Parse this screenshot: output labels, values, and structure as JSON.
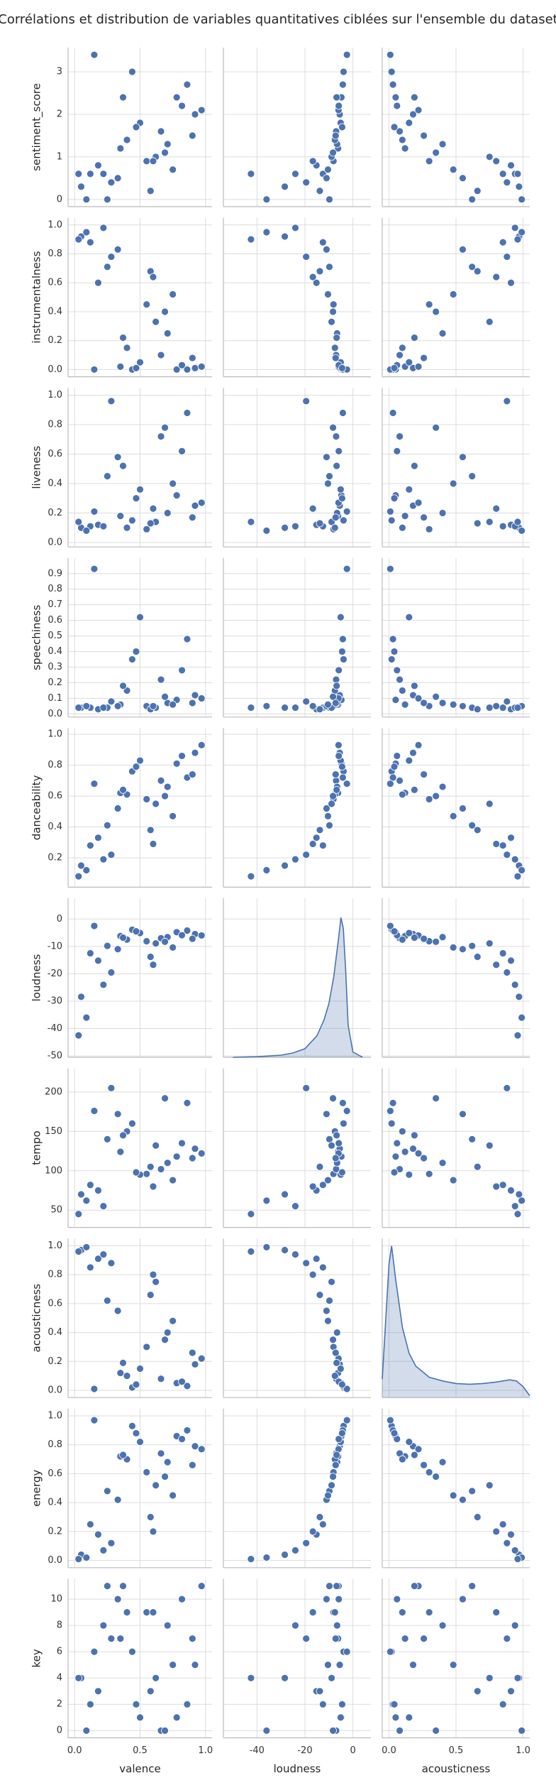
{
  "chart_data": {
    "type": "pairplot",
    "title": "Corrélations et distribution de variables quantitatives ciblées sur l'ensemble du dataset",
    "color": "#4c72b0",
    "grid": true,
    "columns": [
      {
        "label": "valence",
        "xlim": [
          -0.05,
          1.05
        ],
        "xticks": [
          {
            "value": 0,
            "label": "0.0"
          },
          0.5,
          {
            "value": 1,
            "label": "1.0"
          }
        ],
        "values": [
          0.12,
          0.35,
          0.78,
          0.55,
          0.92,
          0.05,
          0.25,
          0.66,
          0.44,
          0.18,
          0.71,
          0.33,
          0.86,
          0.09,
          0.5,
          0.62,
          0.97,
          0.28,
          0.4,
          0.75,
          0.15,
          0.58,
          0.82,
          0.22,
          0.47,
          0.69,
          0.03,
          0.9,
          0.37,
          0.6
        ]
      },
      {
        "label": "loudness",
        "xlim": [
          -54,
          7.5
        ],
        "xticks": [
          -40,
          -20,
          0
        ],
        "values": [
          -12.5,
          -6.2,
          -4.8,
          -8.1,
          -5.5,
          -28.4,
          -9.8,
          -7.0,
          -3.9,
          -15.2,
          -6.6,
          -11.0,
          -4.2,
          -36.0,
          -5.1,
          -8.9,
          -6.0,
          -19.5,
          -7.5,
          -10.4,
          -2.5,
          -13.8,
          -5.9,
          -24.0,
          -4.5,
          -8.3,
          -42.5,
          -7.2,
          -6.8,
          -16.7
        ]
      },
      {
        "label": "acousticness",
        "xlim": [
          -0.05,
          1.05
        ],
        "xticks": [
          {
            "value": 0,
            "label": "0.0"
          },
          0.5,
          {
            "value": 1,
            "label": "1.0"
          }
        ],
        "values": [
          0.85,
          0.12,
          0.05,
          0.3,
          0.18,
          0.97,
          0.62,
          0.08,
          0.02,
          0.91,
          0.4,
          0.55,
          0.03,
          0.99,
          0.15,
          0.75,
          0.22,
          0.88,
          0.1,
          0.48,
          0.01,
          0.66,
          0.06,
          0.94,
          0.04,
          0.35,
          0.96,
          0.26,
          0.19,
          0.8
        ]
      }
    ],
    "rows": [
      {
        "label": "sentiment_score",
        "ylim": [
          -0.17,
          3.57
        ],
        "yticks": [
          0,
          1,
          2,
          3
        ],
        "values": [
          0.6,
          1.2,
          2.4,
          0.9,
          2.0,
          0.3,
          0.0,
          1.6,
          3.0,
          0.8,
          1.3,
          0.5,
          2.7,
          0.0,
          1.8,
          1.0,
          2.1,
          0.4,
          1.4,
          0.7,
          3.4,
          0.2,
          2.2,
          0.6,
          1.7,
          1.1,
          0.6,
          1.5,
          2.4,
          0.9
        ]
      },
      {
        "label": "instrumentalness",
        "ylim": [
          -0.05,
          1.05
        ],
        "yticks": [
          {
            "value": 0,
            "label": "0.0"
          },
          0.2,
          0.4,
          0.6,
          0.8,
          {
            "value": 1,
            "label": "1.0"
          }
        ],
        "values": [
          0.88,
          0.02,
          0.0,
          0.45,
          0.01,
          0.92,
          0.71,
          0.1,
          0.0,
          0.6,
          0.25,
          0.83,
          0.0,
          0.95,
          0.05,
          0.33,
          0.02,
          0.78,
          0.15,
          0.52,
          0.0,
          0.68,
          0.03,
          0.98,
          0.01,
          0.4,
          0.9,
          0.08,
          0.22,
          0.64
        ]
      },
      {
        "label": "liveness",
        "ylim": [
          -0.03,
          1.05
        ],
        "yticks": [
          {
            "value": 0,
            "label": "0.0"
          },
          0.2,
          0.4,
          0.6,
          0.8,
          {
            "value": 1,
            "label": "1.0"
          }
        ],
        "values": [
          0.11,
          0.18,
          0.32,
          0.09,
          0.25,
          0.1,
          0.45,
          0.72,
          0.15,
          0.12,
          0.2,
          0.58,
          0.88,
          0.08,
          0.36,
          0.14,
          0.27,
          0.96,
          0.1,
          0.4,
          0.21,
          0.13,
          0.62,
          0.11,
          0.3,
          0.78,
          0.14,
          0.17,
          0.52,
          0.23
        ]
      },
      {
        "label": "speechiness",
        "ylim": [
          -0.02,
          1.0
        ],
        "yticks": [
          {
            "value": 0,
            "label": "0.0"
          },
          0.1,
          0.2,
          0.3,
          0.4,
          0.5,
          0.6,
          0.7,
          0.8,
          0.9
        ],
        "values": [
          0.04,
          0.06,
          0.09,
          0.05,
          0.12,
          0.04,
          0.04,
          0.22,
          0.35,
          0.03,
          0.07,
          0.05,
          0.48,
          0.05,
          0.62,
          0.04,
          0.1,
          0.08,
          0.15,
          0.06,
          0.93,
          0.03,
          0.28,
          0.04,
          0.4,
          0.11,
          0.04,
          0.07,
          0.18,
          0.05
        ]
      },
      {
        "label": "danceability",
        "ylim": [
          0.01,
          1.04
        ],
        "yticks": [
          0.2,
          0.4,
          0.6,
          0.8,
          {
            "value": 1,
            "label": "1.0"
          }
        ],
        "values": [
          0.28,
          0.62,
          0.81,
          0.58,
          0.88,
          0.15,
          0.41,
          0.7,
          0.76,
          0.33,
          0.66,
          0.52,
          0.72,
          0.12,
          0.83,
          0.55,
          0.93,
          0.22,
          0.61,
          0.47,
          0.68,
          0.38,
          0.86,
          0.19,
          0.79,
          0.6,
          0.08,
          0.74,
          0.64,
          0.29
        ]
      },
      {
        "label": "loudness",
        "ylim": [
          -50.5,
          7.6
        ],
        "yticks": [
          -50,
          -40,
          -30,
          -20,
          -10,
          0
        ],
        "values": [
          -12.5,
          -6.2,
          -4.8,
          -8.1,
          -5.5,
          -28.4,
          -9.8,
          -7.0,
          -3.9,
          -15.2,
          -6.6,
          -11.0,
          -4.2,
          -36.0,
          -5.1,
          -8.9,
          -6.0,
          -19.5,
          -7.5,
          -10.4,
          -2.5,
          -13.8,
          -5.9,
          -24.0,
          -4.5,
          -8.3,
          -42.5,
          -7.2,
          -6.8,
          -16.7
        ],
        "kde": {
          "x": [
            -50,
            -40,
            -30,
            -25,
            -20,
            -15,
            -12,
            -10,
            -8,
            -6,
            -5,
            -4,
            -3,
            -2,
            0,
            4
          ],
          "density": [
            0,
            0.0005,
            0.002,
            0.004,
            0.008,
            0.02,
            0.035,
            0.05,
            0.075,
            0.11,
            0.13,
            0.12,
            0.08,
            0.03,
            0.005,
            0
          ],
          "densitylim": [
            0,
            0.148
          ]
        }
      },
      {
        "label": "tempo",
        "ylim": [
          28,
          230
        ],
        "yticks": [
          50,
          100,
          150,
          200
        ],
        "values": [
          82,
          124,
          118,
          96,
          128,
          70,
          140,
          102,
          160,
          75,
          110,
          172,
          186,
          62,
          95,
          132,
          122,
          205,
          150,
          88,
          176,
          105,
          135,
          55,
          98,
          192,
          45,
          116,
          145,
          80
        ]
      },
      {
        "label": "acousticness",
        "ylim": [
          -0.05,
          1.05
        ],
        "yticks": [
          {
            "value": 0,
            "label": "0.0"
          },
          0.2,
          0.4,
          0.6,
          0.8,
          {
            "value": 1,
            "label": "1.0"
          }
        ],
        "values": [
          0.85,
          0.12,
          0.05,
          0.3,
          0.18,
          0.97,
          0.62,
          0.08,
          0.02,
          0.91,
          0.4,
          0.55,
          0.03,
          0.99,
          0.15,
          0.75,
          0.22,
          0.88,
          0.1,
          0.48,
          0.01,
          0.66,
          0.06,
          0.94,
          0.04,
          0.35,
          0.96,
          0.26,
          0.19,
          0.8
        ],
        "kde": {
          "x": [
            -0.05,
            0,
            0.02,
            0.05,
            0.1,
            0.15,
            0.2,
            0.3,
            0.4,
            0.5,
            0.6,
            0.7,
            0.8,
            0.9,
            0.95,
            1.0,
            1.05
          ],
          "density": [
            0.5,
            3.6,
            4.1,
            3.2,
            1.9,
            1.2,
            0.85,
            0.55,
            0.45,
            0.38,
            0.36,
            0.38,
            0.42,
            0.48,
            0.45,
            0.3,
            0.05
          ],
          "densitylim": [
            0,
            4.3
          ]
        }
      },
      {
        "label": "energy",
        "ylim": [
          -0.05,
          1.05
        ],
        "yticks": [
          {
            "value": 0,
            "label": "0.0"
          },
          0.2,
          0.4,
          0.6,
          0.8,
          {
            "value": 1,
            "label": "1.0"
          }
        ],
        "values": [
          0.25,
          0.72,
          0.86,
          0.61,
          0.79,
          0.04,
          0.48,
          0.74,
          0.93,
          0.18,
          0.68,
          0.42,
          0.9,
          0.02,
          0.82,
          0.52,
          0.77,
          0.12,
          0.7,
          0.45,
          0.97,
          0.3,
          0.84,
          0.07,
          0.88,
          0.58,
          0.01,
          0.66,
          0.73,
          0.2
        ]
      },
      {
        "label": "key",
        "ylim": [
          -0.55,
          11.55
        ],
        "yticks": [
          0,
          2,
          4,
          6,
          8,
          10
        ],
        "values": [
          2,
          7,
          1,
          9,
          5,
          4,
          11,
          0,
          6,
          3,
          8,
          10,
          2,
          0,
          1,
          4,
          11,
          7,
          9,
          5,
          6,
          3,
          10,
          8,
          2,
          0,
          4,
          7,
          11,
          9
        ]
      }
    ]
  }
}
